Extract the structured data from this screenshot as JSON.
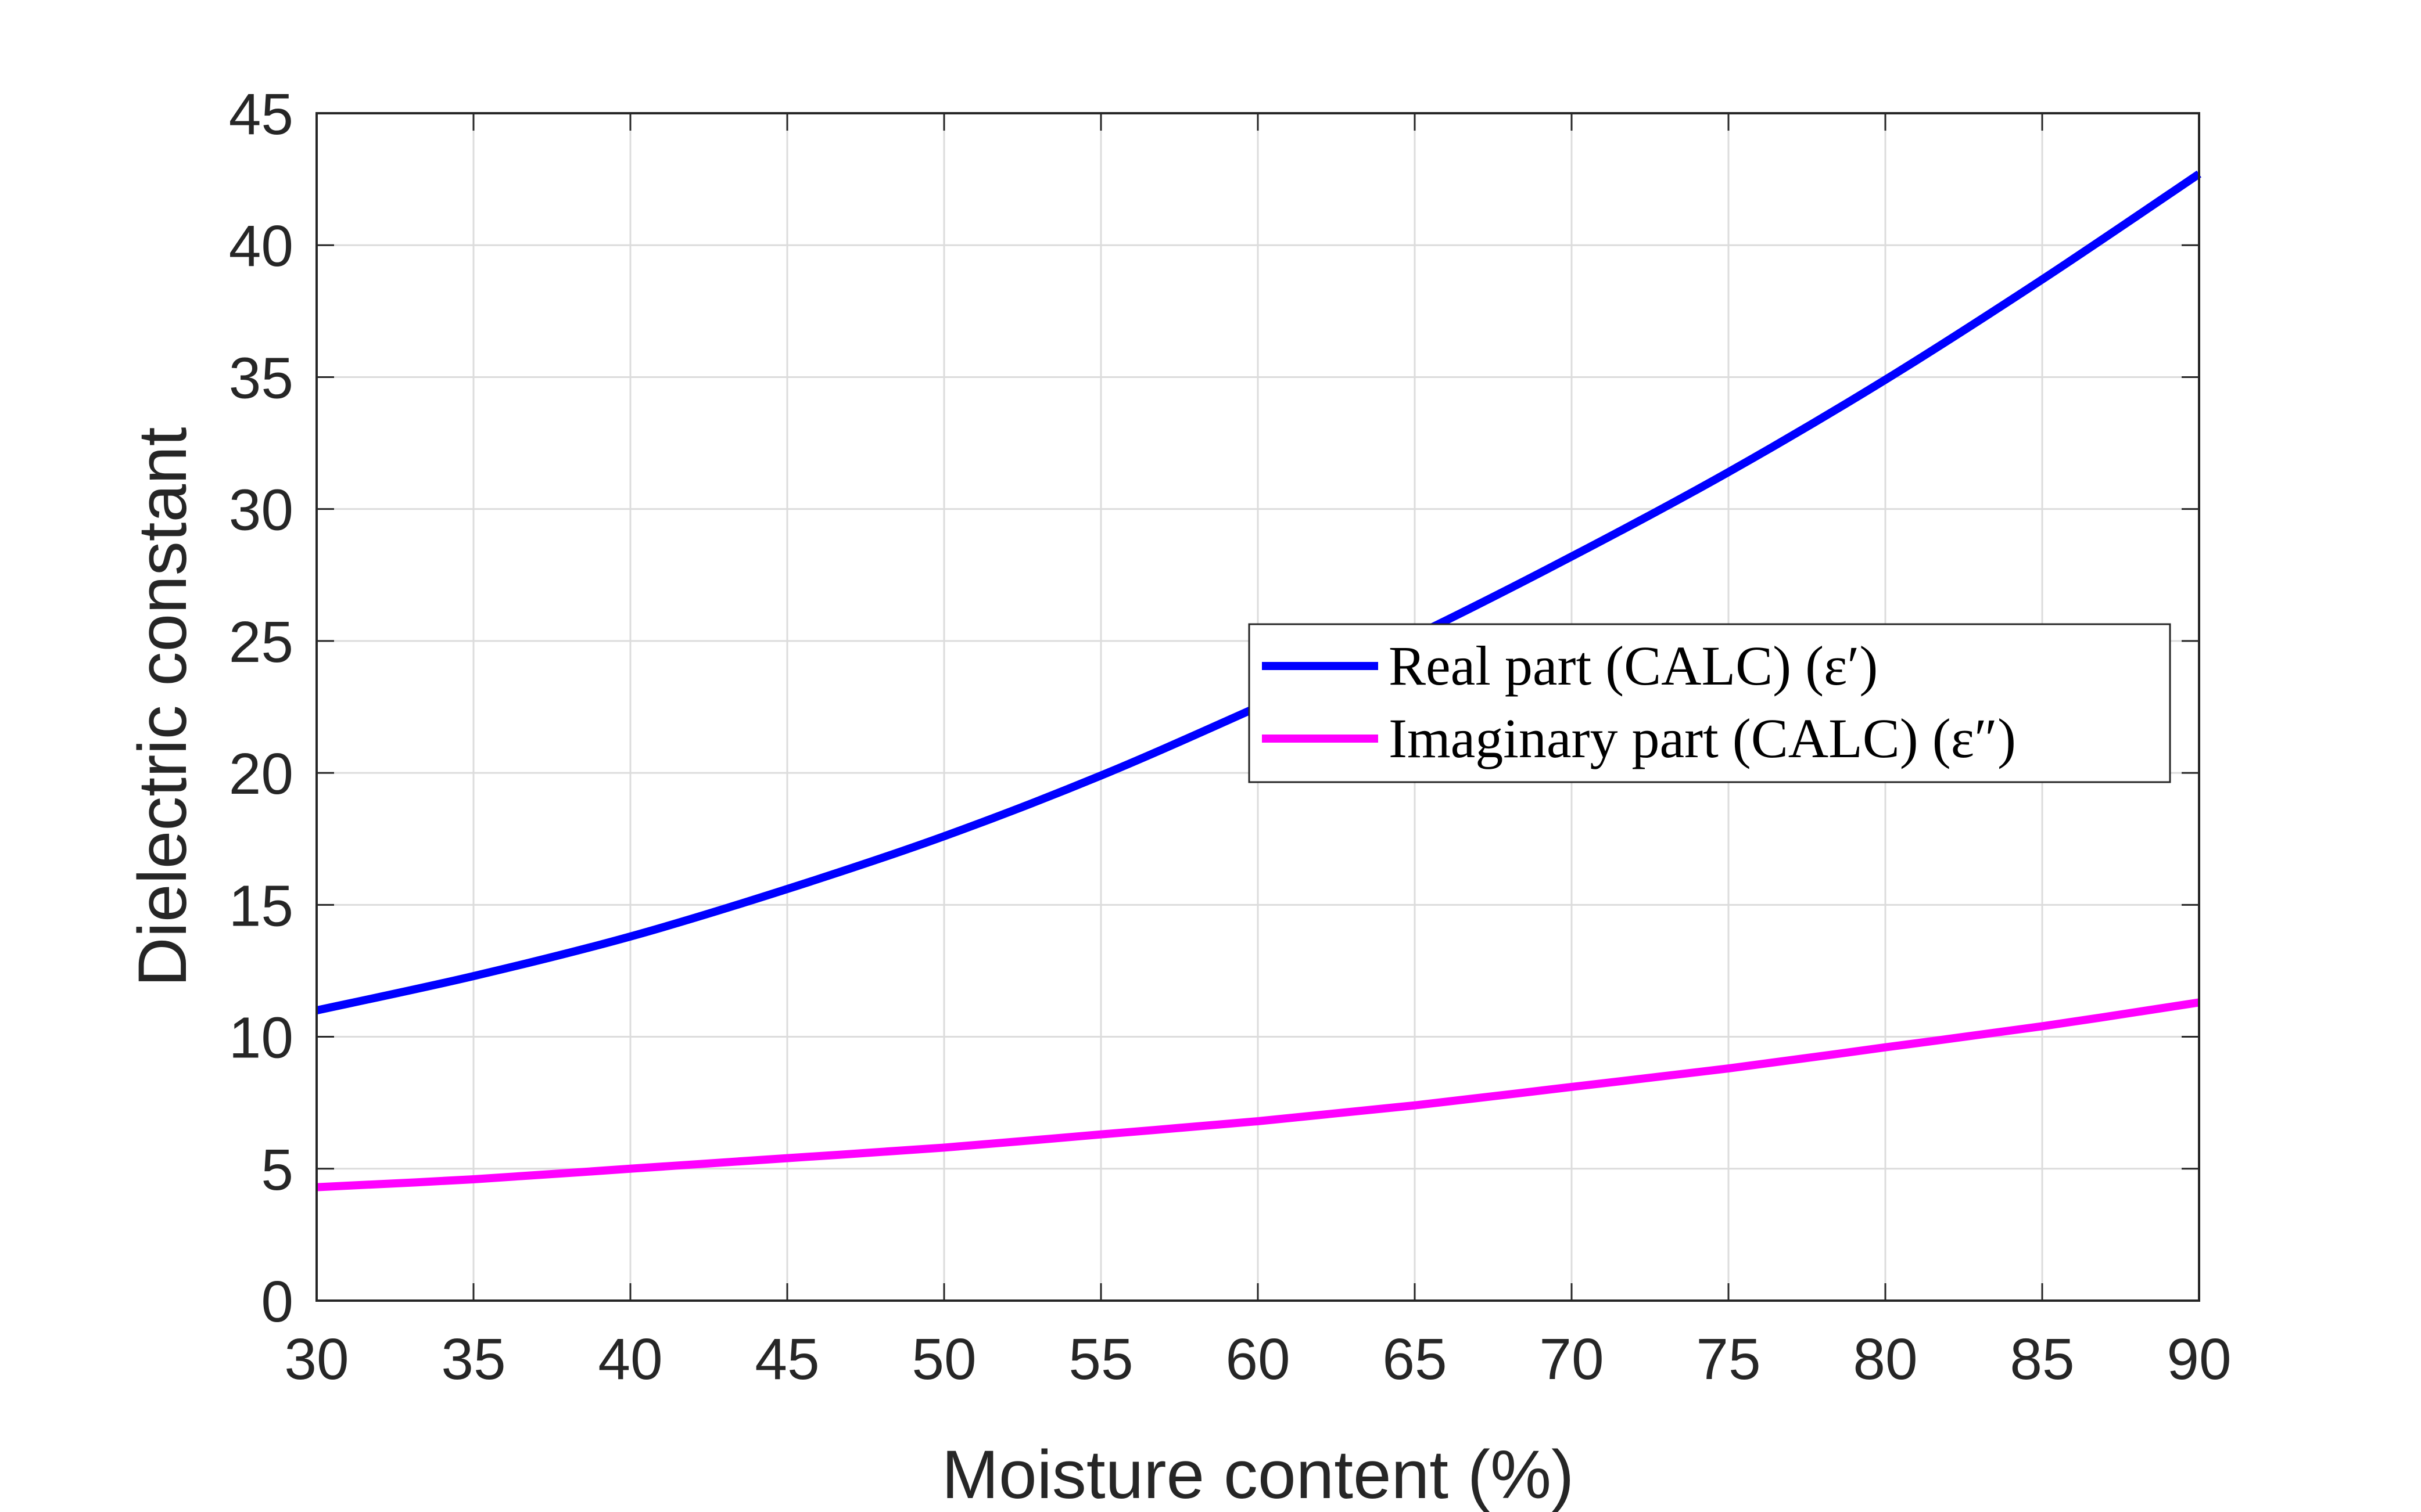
{
  "chart_data": {
    "type": "line",
    "title": "",
    "xlabel": "Moisture content (%)",
    "ylabel": "Dielectric constant",
    "xlim": [
      30,
      90
    ],
    "ylim": [
      0,
      45
    ],
    "xticks": [
      30,
      35,
      40,
      45,
      50,
      55,
      60,
      65,
      70,
      75,
      80,
      85,
      90
    ],
    "yticks": [
      0,
      5,
      10,
      15,
      20,
      25,
      30,
      35,
      40,
      45
    ],
    "grid": true,
    "legend_position": "center-right",
    "x": [
      30,
      35,
      40,
      45,
      50,
      55,
      60,
      65,
      70,
      75,
      80,
      85,
      90
    ],
    "series": [
      {
        "name": "Real part (CALC) (ε′)",
        "color": "#0000ff",
        "values": [
          11.0,
          12.3,
          13.8,
          15.6,
          17.6,
          19.9,
          22.5,
          25.2,
          28.2,
          31.4,
          34.9,
          38.7,
          42.7
        ]
      },
      {
        "name": "Imaginary part (CALC) (ε″)",
        "color": "#ff00ff",
        "values": [
          4.3,
          4.6,
          5.0,
          5.4,
          5.8,
          6.3,
          6.8,
          7.4,
          8.1,
          8.8,
          9.6,
          10.4,
          11.3
        ]
      }
    ]
  }
}
